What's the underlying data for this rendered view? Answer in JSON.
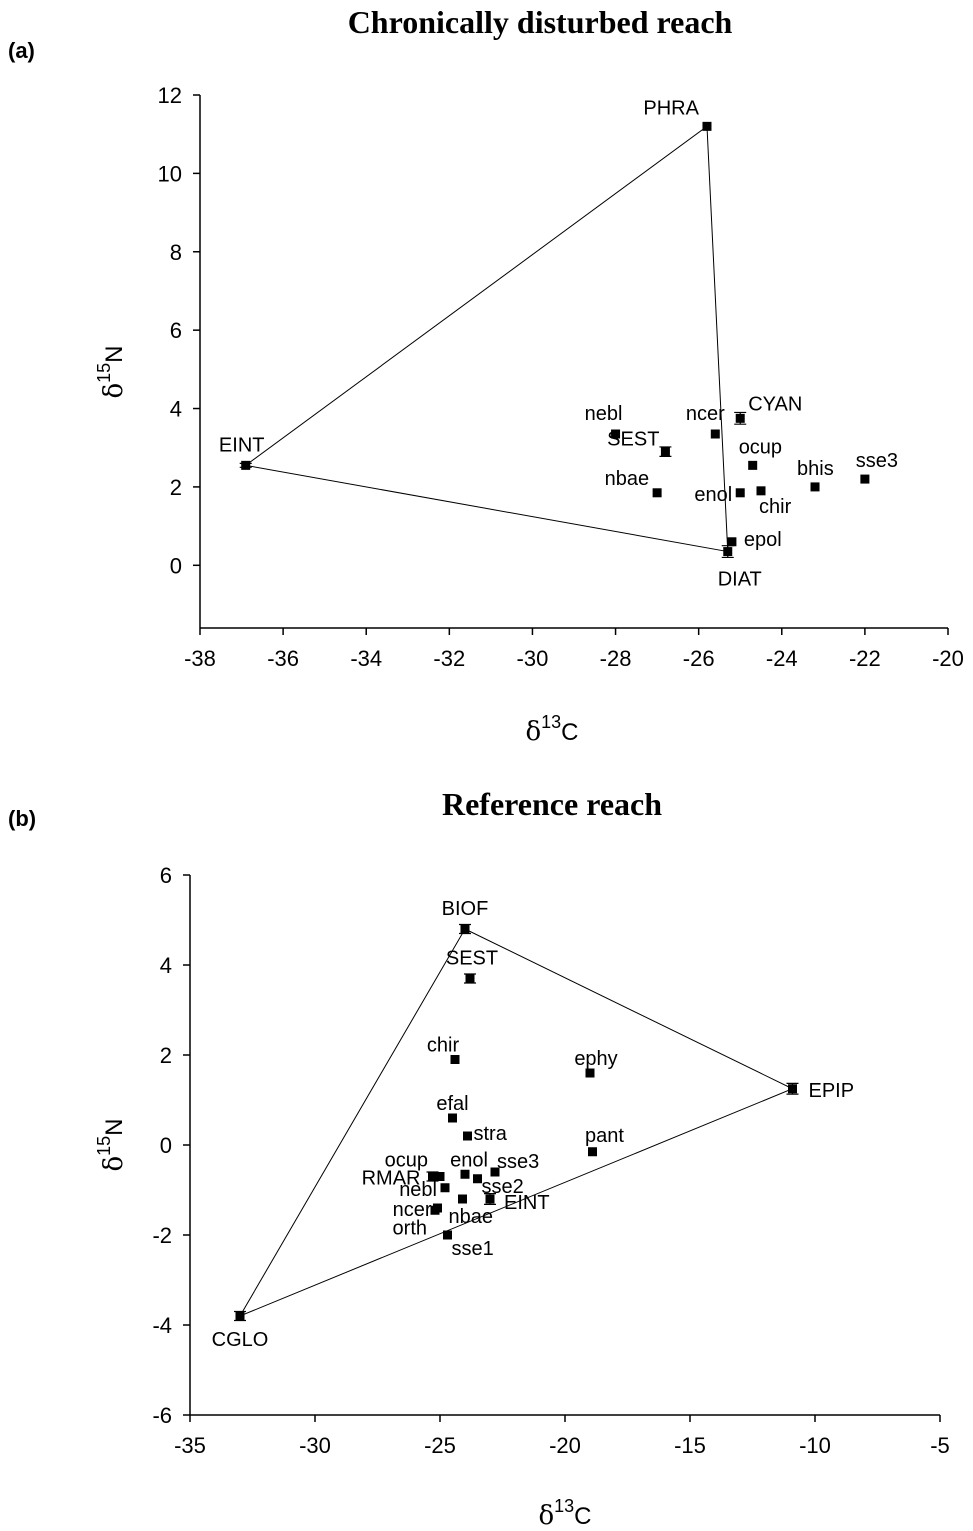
{
  "chart_data": [
    {
      "type": "scatter",
      "panel_label": "(a)",
      "title": "Chronically disturbed reach",
      "xlabel": {
        "symbol": "δ",
        "sup": "13",
        "el": "C"
      },
      "ylabel": {
        "symbol": "δ",
        "sup": "15",
        "el": "N"
      },
      "xlim": [
        -38,
        -20
      ],
      "ylim": [
        -1.6,
        12
      ],
      "xticks": [
        -38,
        -36,
        -34,
        -32,
        -30,
        -28,
        -26,
        -24,
        -22,
        -20
      ],
      "yticks": [
        0,
        2,
        4,
        6,
        8,
        10,
        12
      ],
      "grid": false,
      "polygon": [
        "PHRA",
        "DIAT",
        "EINT"
      ],
      "points": [
        {
          "label": "PHRA",
          "x": -25.8,
          "y": 11.2,
          "err": 0
        },
        {
          "label": "EINT",
          "x": -36.9,
          "y": 2.55,
          "err": 0.05
        },
        {
          "label": "DIAT",
          "x": -25.3,
          "y": 0.35,
          "err": 0.15
        },
        {
          "label": "CYAN",
          "x": -25.0,
          "y": 3.75,
          "err": 0.15
        },
        {
          "label": "SEST",
          "x": -26.8,
          "y": 2.9,
          "err": 0.12
        },
        {
          "label": "nebl",
          "x": -28.0,
          "y": 3.35,
          "err": 0
        },
        {
          "label": "ncer",
          "x": -25.6,
          "y": 3.35,
          "err": 0
        },
        {
          "label": "nbae",
          "x": -27.0,
          "y": 1.85,
          "err": 0
        },
        {
          "label": "ocup",
          "x": -24.7,
          "y": 2.55,
          "err": 0
        },
        {
          "label": "enol",
          "x": -25.0,
          "y": 1.85,
          "err": 0
        },
        {
          "label": "chir",
          "x": -24.5,
          "y": 1.9,
          "err": 0
        },
        {
          "label": "bhis",
          "x": -23.2,
          "y": 2.0,
          "err": 0
        },
        {
          "label": "sse3",
          "x": -22.0,
          "y": 2.2,
          "err": 0
        },
        {
          "label": "epol",
          "x": -25.2,
          "y": 0.6,
          "err": 0
        }
      ]
    },
    {
      "type": "scatter",
      "panel_label": "(b)",
      "title": "Reference reach",
      "xlabel": {
        "symbol": "δ",
        "sup": "13",
        "el": "C"
      },
      "ylabel": {
        "symbol": "δ",
        "sup": "15",
        "el": "N"
      },
      "xlim": [
        -35,
        -5
      ],
      "ylim": [
        -6,
        6
      ],
      "xticks": [
        -35,
        -30,
        -25,
        -20,
        -15,
        -10,
        -5
      ],
      "yticks": [
        -6,
        -4,
        -2,
        0,
        2,
        4,
        6
      ],
      "grid": false,
      "polygon": [
        "BIOF",
        "EPIP",
        "CGLO"
      ],
      "points": [
        {
          "label": "BIOF",
          "x": -24.0,
          "y": 4.8,
          "err": 0.1
        },
        {
          "label": "SEST",
          "x": -23.8,
          "y": 3.7,
          "err": 0.1
        },
        {
          "label": "EPIP",
          "x": -10.9,
          "y": 1.25,
          "err": 0.12
        },
        {
          "label": "CGLO",
          "x": -33.0,
          "y": -3.8,
          "err": 0.1
        },
        {
          "label": "chir",
          "x": -24.4,
          "y": 1.9,
          "err": 0
        },
        {
          "label": "ephy",
          "x": -19.0,
          "y": 1.6,
          "err": 0
        },
        {
          "label": "efal",
          "x": -24.5,
          "y": 0.6,
          "err": 0
        },
        {
          "label": "stra",
          "x": -23.9,
          "y": 0.2,
          "err": 0
        },
        {
          "label": "pant",
          "x": -18.9,
          "y": -0.15,
          "err": 0
        },
        {
          "label": "ocup",
          "x": -25.0,
          "y": -0.7,
          "err": 0
        },
        {
          "label": "enol",
          "x": -24.0,
          "y": -0.65,
          "err": 0
        },
        {
          "label": "sse3",
          "x": -22.8,
          "y": -0.6,
          "err": 0
        },
        {
          "label": "RMAR",
          "x": -25.3,
          "y": -0.7,
          "err": 0.1
        },
        {
          "label": "sse2",
          "x": -23.5,
          "y": -0.75,
          "err": 0
        },
        {
          "label": "nebl",
          "x": -24.8,
          "y": -0.95,
          "err": 0
        },
        {
          "label": "EINT",
          "x": -23.0,
          "y": -1.2,
          "err": 0.12
        },
        {
          "label": "nbae",
          "x": -24.1,
          "y": -1.2,
          "err": 0
        },
        {
          "label": "ncer",
          "x": -25.1,
          "y": -1.4,
          "err": 0
        },
        {
          "label": "orth",
          "x": -25.2,
          "y": -1.45,
          "err": 0
        },
        {
          "label": "sse1",
          "x": -24.7,
          "y": -2.0,
          "err": 0
        }
      ]
    }
  ]
}
